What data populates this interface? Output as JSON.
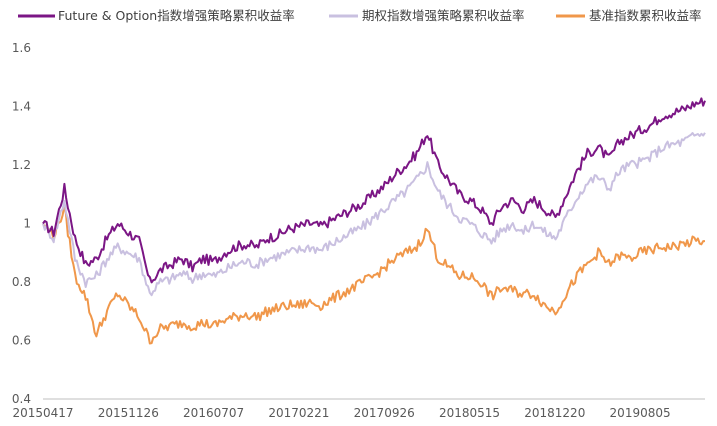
{
  "chart_data": {
    "type": "line",
    "title": "",
    "xlabel": "",
    "ylabel": "",
    "ylim": [
      0.4,
      1.6
    ],
    "yticks": [
      0.4,
      0.6,
      0.8,
      1,
      1.2,
      1.4,
      1.6
    ],
    "ytick_labels": [
      "0.4",
      "0.6",
      "0.8",
      "1",
      "1.2",
      "1.4",
      "1.6"
    ],
    "grid": false,
    "legend_position": "top",
    "x_tick_labels": [
      "20150417",
      "20151126",
      "20160707",
      "20170221",
      "20170926",
      "20180515",
      "20181220",
      "20190805"
    ],
    "x": [
      "2015-04-17",
      "2015-05-15",
      "2015-06-12",
      "2015-07-10",
      "2015-08-07",
      "2015-09-10",
      "2015-10-09",
      "2015-11-06",
      "2015-11-26",
      "2015-12-25",
      "2016-01-22",
      "2016-02-26",
      "2016-03-25",
      "2016-04-22",
      "2016-05-20",
      "2016-06-17",
      "2016-07-07",
      "2016-08-05",
      "2016-09-02",
      "2016-09-30",
      "2016-10-28",
      "2016-11-25",
      "2016-12-23",
      "2017-01-20",
      "2017-02-21",
      "2017-03-20",
      "2017-04-17",
      "2017-05-15",
      "2017-06-12",
      "2017-07-10",
      "2017-08-07",
      "2017-09-04",
      "2017-09-26",
      "2017-10-24",
      "2017-11-21",
      "2017-12-19",
      "2018-01-16",
      "2018-02-13",
      "2018-03-13",
      "2018-04-10",
      "2018-05-15",
      "2018-06-12",
      "2018-07-10",
      "2018-08-07",
      "2018-09-04",
      "2018-10-02",
      "2018-10-30",
      "2018-11-27",
      "2018-12-20",
      "2019-01-17",
      "2019-02-14",
      "2019-03-14",
      "2019-04-11",
      "2019-05-09",
      "2019-06-06",
      "2019-07-04",
      "2019-08-05",
      "2019-09-02",
      "2019-09-30",
      "2019-10-28",
      "2019-11-25",
      "2019-12-23",
      "2020-01-20"
    ],
    "series": [
      {
        "name": "Future & Option指数增强策略累积收益率",
        "color": "#7B1685",
        "values": [
          1.0,
          0.97,
          1.12,
          0.95,
          0.86,
          0.88,
          0.95,
          1.0,
          0.97,
          0.94,
          0.8,
          0.84,
          0.86,
          0.88,
          0.85,
          0.88,
          0.87,
          0.9,
          0.92,
          0.93,
          0.92,
          0.95,
          0.96,
          0.98,
          0.99,
          1.0,
          0.99,
          1.01,
          1.03,
          1.05,
          1.07,
          1.1,
          1.13,
          1.17,
          1.2,
          1.24,
          1.31,
          1.2,
          1.15,
          1.1,
          1.08,
          1.05,
          1.0,
          1.06,
          1.08,
          1.05,
          1.08,
          1.05,
          1.02,
          1.1,
          1.18,
          1.24,
          1.26,
          1.22,
          1.28,
          1.3,
          1.32,
          1.34,
          1.37,
          1.38,
          1.39,
          1.41,
          1.42
        ]
      },
      {
        "name": "期权指数增强策略累积收益率",
        "color": "#C9C0E0",
        "values": [
          1.0,
          0.95,
          1.08,
          0.88,
          0.8,
          0.82,
          0.88,
          0.92,
          0.9,
          0.88,
          0.76,
          0.8,
          0.81,
          0.83,
          0.81,
          0.83,
          0.82,
          0.84,
          0.86,
          0.87,
          0.86,
          0.88,
          0.89,
          0.9,
          0.91,
          0.92,
          0.91,
          0.93,
          0.95,
          0.97,
          0.99,
          1.02,
          1.05,
          1.08,
          1.11,
          1.15,
          1.2,
          1.11,
          1.06,
          1.02,
          1.0,
          0.97,
          0.94,
          0.98,
          1.0,
          0.97,
          1.0,
          0.97,
          0.95,
          1.02,
          1.09,
          1.14,
          1.16,
          1.12,
          1.18,
          1.2,
          1.21,
          1.23,
          1.26,
          1.27,
          1.28,
          1.3,
          1.31
        ]
      },
      {
        "name": "基准指数累积收益率",
        "color": "#F0974A",
        "values": [
          1.0,
          0.96,
          1.05,
          0.82,
          0.75,
          0.62,
          0.7,
          0.76,
          0.72,
          0.68,
          0.6,
          0.64,
          0.65,
          0.66,
          0.65,
          0.66,
          0.65,
          0.67,
          0.68,
          0.69,
          0.68,
          0.7,
          0.71,
          0.72,
          0.72,
          0.73,
          0.72,
          0.74,
          0.76,
          0.78,
          0.8,
          0.82,
          0.85,
          0.88,
          0.9,
          0.92,
          0.98,
          0.88,
          0.85,
          0.82,
          0.82,
          0.8,
          0.75,
          0.78,
          0.77,
          0.76,
          0.76,
          0.72,
          0.7,
          0.76,
          0.82,
          0.86,
          0.9,
          0.86,
          0.89,
          0.88,
          0.9,
          0.91,
          0.92,
          0.92,
          0.93,
          0.94,
          0.94
        ]
      }
    ]
  }
}
